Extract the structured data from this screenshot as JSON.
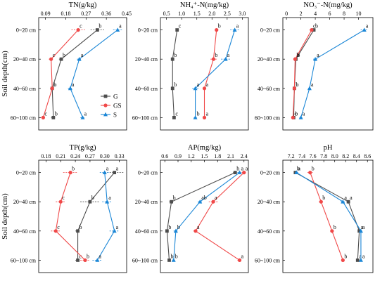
{
  "colors": {
    "G": "#4d4d4d",
    "GS": "#f04848",
    "S": "#1a86d6"
  },
  "shared": {
    "y_axis_label": "Soil depth(cm)",
    "depth_labels": [
      "0~20 cm",
      "20~40 cm",
      "40~60 cm",
      "60~100 cm"
    ],
    "legend": [
      "G",
      "GS",
      "S"
    ]
  },
  "chart_data": [
    {
      "type": "line",
      "title": "TN(g/kg)",
      "x_scale": "linear",
      "xlim": [
        0.06,
        0.45
      ],
      "xticks": [
        0.09,
        0.18,
        0.27,
        0.36,
        0.45
      ],
      "categories": [
        "0~20 cm",
        "20~40 cm",
        "40~60 cm",
        "60~100 cm"
      ],
      "series": [
        {
          "name": "G",
          "values": [
            0.32,
            0.16,
            0.12,
            0.125
          ],
          "errors": [
            0.03,
            0.01,
            0.01,
            0.01
          ],
          "letters": [
            "b",
            "b",
            "b",
            "b"
          ]
        },
        {
          "name": "GS",
          "values": [
            0.235,
            0.115,
            0.12,
            0.08
          ],
          "errors": [
            0.03,
            0.01,
            0.01,
            0.01
          ],
          "letters": [
            "c",
            "c",
            "b",
            "c"
          ]
        },
        {
          "name": "S",
          "values": [
            0.41,
            0.24,
            0.2,
            0.255
          ],
          "errors": [
            0.02,
            0.01,
            0.01,
            0.01
          ],
          "letters": [
            "a",
            "a",
            "a",
            "a"
          ]
        }
      ]
    },
    {
      "type": "line",
      "title": "NH₄⁺-N(mg/kg)",
      "x_scale": "linear",
      "xlim": [
        0.3,
        3.2
      ],
      "xticks": [
        0.5,
        1.0,
        1.5,
        2.0,
        2.5,
        3.0
      ],
      "categories": [
        "0~20 cm",
        "20~40 cm",
        "40~60 cm",
        "60~100 cm"
      ],
      "series": [
        {
          "name": "G",
          "values": [
            0.85,
            0.7,
            0.7,
            0.75
          ],
          "errors": [
            0.05,
            0.03,
            0.03,
            0.03
          ],
          "letters": [
            "c",
            "b",
            "b",
            "c"
          ]
        },
        {
          "name": "GS",
          "values": [
            2.15,
            2.05,
            1.75,
            1.75
          ],
          "errors": [
            0.05,
            0.1,
            0.05,
            0.05
          ],
          "letters": [
            "b",
            "b",
            "a",
            "a"
          ]
        },
        {
          "name": "S",
          "values": [
            2.75,
            2.45,
            1.45,
            1.45
          ],
          "errors": [
            0.15,
            0.15,
            0.1,
            0.05
          ],
          "letters": [
            "a",
            "a",
            "a",
            "b"
          ]
        }
      ]
    },
    {
      "type": "line",
      "title": "NO₃⁻-N(mg/kg)",
      "x_scale": "linear",
      "xlim": [
        -0.5,
        12
      ],
      "xticks": [
        0,
        2,
        4,
        6,
        8,
        10
      ],
      "categories": [
        "0~20 cm",
        "20~40 cm",
        "40~60 cm",
        "60~100 cm"
      ],
      "series": [
        {
          "name": "G",
          "values": [
            3.8,
            1.3,
            1.1,
            1.0
          ],
          "errors": [
            0.3,
            0.1,
            0.1,
            0.1
          ],
          "letters": [
            "b",
            "b",
            "b",
            "b"
          ]
        },
        {
          "name": "GS",
          "values": [
            3.5,
            1.2,
            1.1,
            0.9
          ],
          "errors": [
            0.3,
            0.1,
            0.1,
            0.1
          ],
          "letters": [
            "c",
            "b",
            "b",
            "c"
          ]
        },
        {
          "name": "S",
          "values": [
            10.8,
            4.0,
            3.2,
            2.0
          ],
          "errors": [
            0.5,
            0.3,
            0.2,
            0.2
          ],
          "letters": [
            "a",
            "a",
            "a",
            "a"
          ]
        }
      ]
    },
    {
      "type": "line",
      "title": "TP(g/kg)",
      "x_scale": "linear",
      "xlim": [
        0.165,
        0.345
      ],
      "xticks": [
        0.18,
        0.21,
        0.24,
        0.27,
        0.3,
        0.33
      ],
      "categories": [
        "0~20 cm",
        "20~40 cm",
        "40~60 cm",
        "60~100 cm"
      ],
      "series": [
        {
          "name": "G",
          "values": [
            0.32,
            0.27,
            0.245,
            0.245
          ],
          "errors": [
            0.02,
            0.02,
            0.005,
            0.005
          ],
          "letters": [
            "a",
            "b",
            "b",
            "c"
          ]
        },
        {
          "name": "GS",
          "values": [
            0.23,
            0.21,
            0.2,
            0.26
          ],
          "errors": [
            0.015,
            0.01,
            0.01,
            0.01
          ],
          "letters": [
            "b",
            "c",
            "c",
            "b"
          ]
        },
        {
          "name": "S",
          "values": [
            0.3,
            0.305,
            0.32,
            0.285
          ],
          "errors": [
            0.01,
            0.01,
            0.01,
            0.01
          ],
          "letters": [
            "a",
            "a",
            "a",
            "a"
          ]
        }
      ]
    },
    {
      "type": "line",
      "title": "AP(mg/kg)",
      "x_scale": "linear",
      "xlim": [
        0.5,
        2.5
      ],
      "xticks": [
        0.6,
        0.9,
        1.2,
        1.5,
        1.8,
        2.1,
        2.4
      ],
      "categories": [
        "0~20 cm",
        "20~40 cm",
        "40~60 cm",
        "60~100 cm"
      ],
      "series": [
        {
          "name": "G",
          "values": [
            2.2,
            0.75,
            0.65,
            0.7
          ],
          "errors": [
            0.05,
            0.05,
            0.03,
            0.03
          ],
          "letters": [
            "b",
            "b",
            "b",
            "b"
          ]
        },
        {
          "name": "GS",
          "values": [
            2.4,
            1.7,
            1.3,
            2.3
          ],
          "errors": [
            0.05,
            0.1,
            0.05,
            0.05
          ],
          "letters": [
            "a",
            "a",
            "a",
            "a"
          ]
        },
        {
          "name": "S",
          "values": [
            2.3,
            1.4,
            0.85,
            0.8
          ],
          "errors": [
            0.05,
            0.05,
            0.05,
            0.03
          ],
          "letters": [
            "a",
            "ab",
            "b",
            "b"
          ]
        }
      ]
    },
    {
      "type": "line",
      "title": "pH",
      "x_scale": "linear",
      "xlim": [
        7.05,
        8.7
      ],
      "xticks": [
        7.2,
        7.4,
        7.6,
        7.8,
        8.0,
        8.2,
        8.4,
        8.6
      ],
      "categories": [
        "0~20 cm",
        "20~40 cm",
        "40~60 cm",
        "60~100 cm"
      ],
      "series": [
        {
          "name": "G",
          "values": [
            7.28,
            8.25,
            8.45,
            8.42
          ],
          "errors": [
            0.03,
            0.03,
            0.02,
            0.02
          ],
          "letters": [
            "b",
            "a",
            "a",
            "a"
          ]
        },
        {
          "name": "GS",
          "values": [
            7.55,
            7.75,
            7.95,
            8.15
          ],
          "errors": [
            0.05,
            0.04,
            0.03,
            0.03
          ],
          "letters": [
            "b",
            "b",
            "b",
            "b"
          ]
        },
        {
          "name": "S",
          "values": [
            7.3,
            8.15,
            8.48,
            8.48
          ],
          "errors": [
            0.03,
            0.04,
            0.02,
            0.02
          ],
          "letters": [
            "a",
            "a",
            "a",
            "a"
          ]
        }
      ]
    }
  ]
}
